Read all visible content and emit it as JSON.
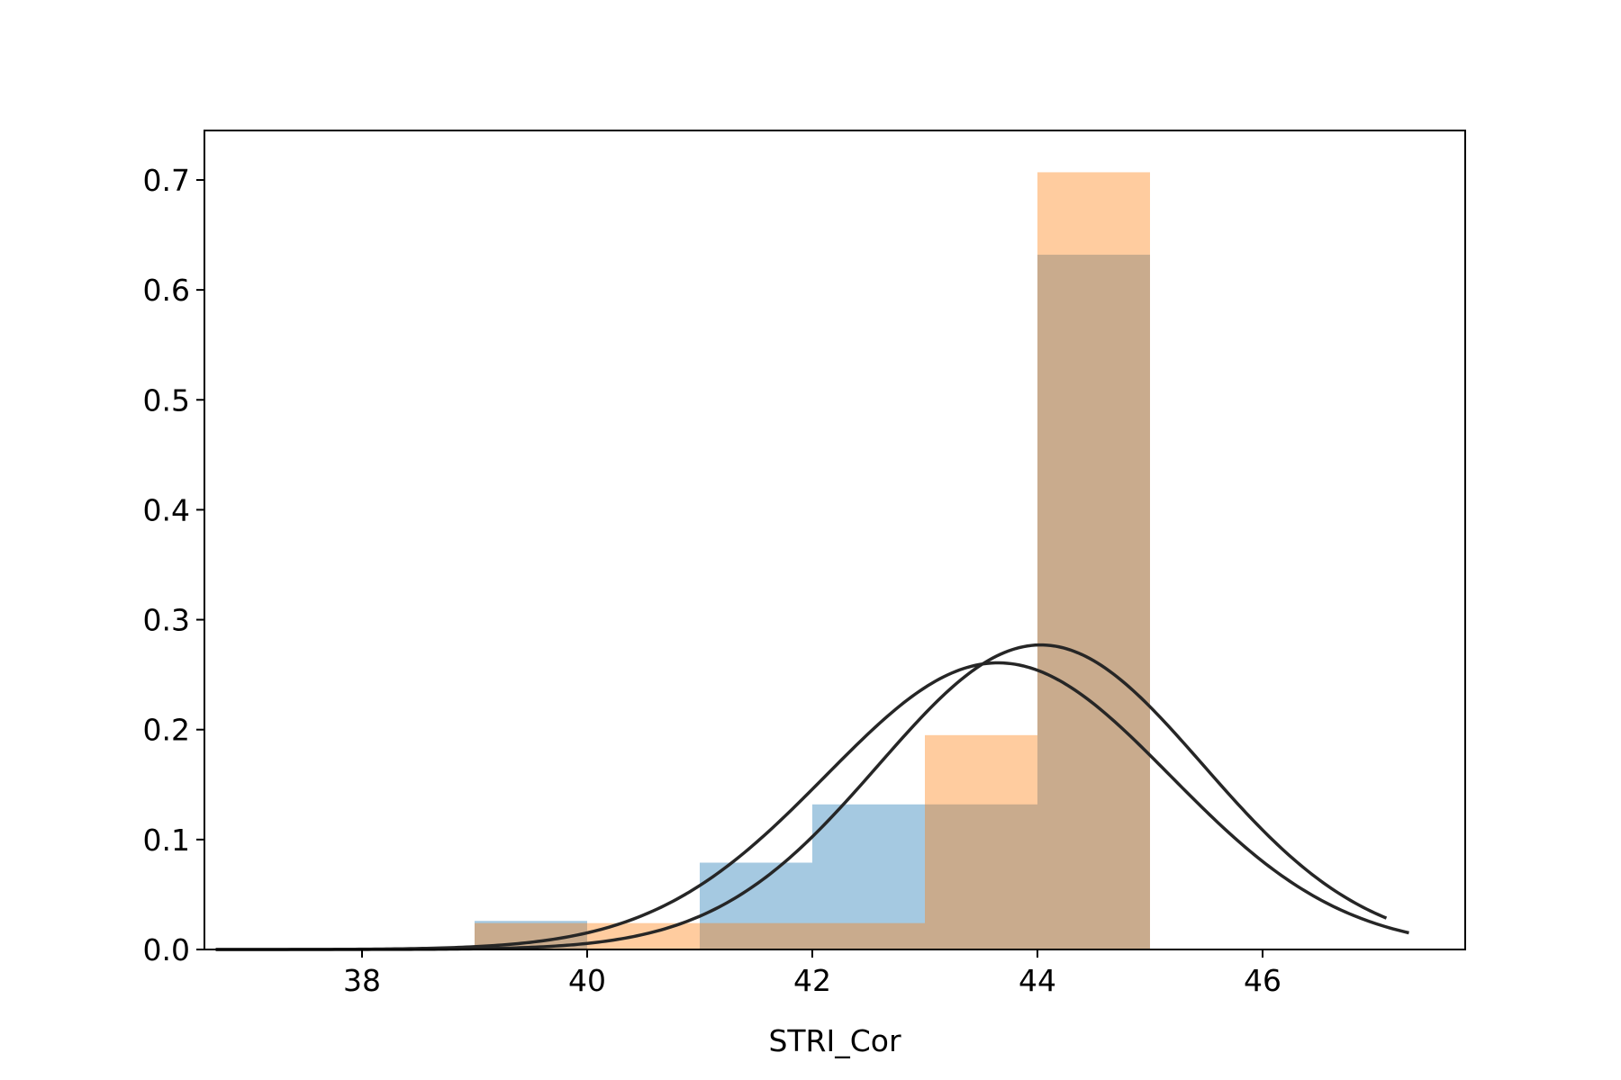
{
  "chart_data": {
    "type": "histogram",
    "xlabel": "STRI_Cor",
    "ylabel": "",
    "xlim": [
      36.6,
      47.8
    ],
    "ylim": [
      0,
      0.745
    ],
    "x_ticks": [
      38,
      40,
      42,
      44,
      46
    ],
    "y_ticks": [
      0.0,
      0.1,
      0.2,
      0.3,
      0.4,
      0.5,
      0.6,
      0.7
    ],
    "x_tick_labels": [
      "38",
      "40",
      "42",
      "44",
      "46"
    ],
    "y_tick_labels": [
      "0.0",
      "0.1",
      "0.2",
      "0.3",
      "0.4",
      "0.5",
      "0.6",
      "0.7"
    ],
    "grid": false,
    "bin_edges": [
      39,
      41,
      43,
      45
    ],
    "series": [
      {
        "color": "#1f77b4",
        "alpha": 0.4,
        "bins": [
          {
            "x0": 39,
            "x1": 40,
            "density": 0.026
          },
          {
            "x0": 40,
            "x1": 41,
            "density": 0.0
          },
          {
            "x0": 41,
            "x1": 42,
            "density": 0.079
          },
          {
            "x0": 42,
            "x1": 43,
            "density": 0.132
          },
          {
            "x0": 43,
            "x1": 44,
            "density": 0.132
          },
          {
            "x0": 44,
            "x1": 45,
            "density": 0.632
          }
        ],
        "fit_curve": {
          "mean": 43.65,
          "std": 1.53,
          "x_range": [
            36.7,
            47.3
          ]
        }
      },
      {
        "color": "#ff7f0e",
        "alpha": 0.4,
        "bins": [
          {
            "x0": 39,
            "x1": 41,
            "density": 0.024
          },
          {
            "x0": 41,
            "x1": 43,
            "density": 0.024
          },
          {
            "x0": 43,
            "x1": 44,
            "density": 0.195
          },
          {
            "x0": 44,
            "x1": 45,
            "density": 0.707
          }
        ],
        "fit_curve": {
          "mean": 44.03,
          "std": 1.44,
          "x_range": [
            36.7,
            47.1
          ]
        }
      }
    ]
  }
}
